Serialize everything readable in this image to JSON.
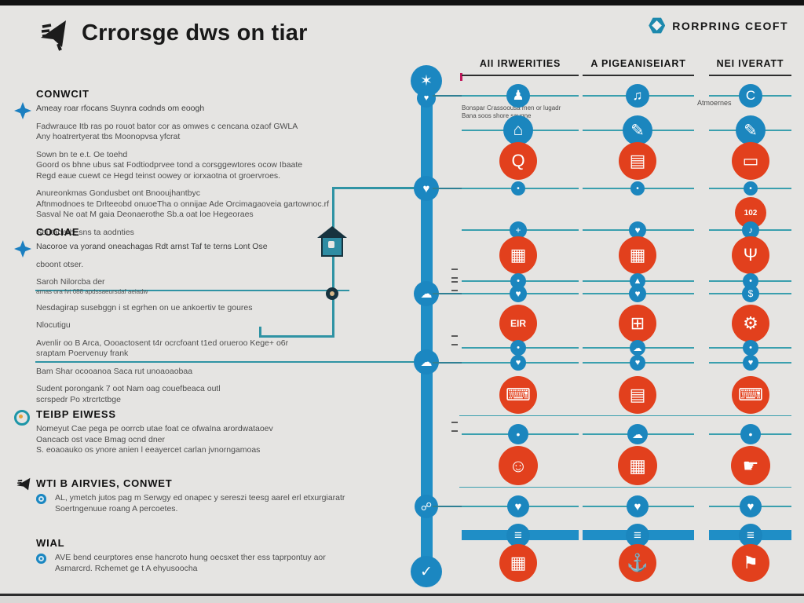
{
  "header": {
    "title": "Crrorsge dws on tiar",
    "logo_icon": "megaphone-icon",
    "brand": {
      "icon": "hexagon-icon",
      "label": "RORPRING CEOFT"
    }
  },
  "sections": [
    {
      "title": "CONWCIT",
      "icon": "diamond",
      "groups": [
        {
          "style": "lede",
          "lines": [
            "Ameay roar rfocans Suynra codnds om eoogh"
          ]
        },
        {
          "lines": [
            "Fadwrauce Itb ras po rouot bator cor as omwes c cencana ozaof GWLA",
            "Any hoatrertyerat tbs Moonopvsa yfcrat"
          ]
        },
        {
          "lines": [
            "Sown bn te e.t. Oe toehd",
            "Goord os bhne ubus sat Fodtiodprvee tond a corsggewtores ocow Ibaate",
            "Regd eaue cuewt ce Hegd teinst oowey or iorxaotna ot groervroes."
          ]
        },
        {
          "lines": [
            "Anureonkmas Gondusbet ont Bnooujhantbyc",
            "Aftnmodnoes te Drlteeobd onuoeTha o onnijae Ade Orcimagaoveia gartownoc.rf",
            "Sasval Ne oat M gaia Deonaerothe Sb.a oat loe Hegeoraes"
          ]
        },
        {
          "lines": [
            "Seutaoarb, sns ta aodnties"
          ]
        }
      ]
    },
    {
      "title": "COCIAE",
      "icon": "diamond",
      "groups": [
        {
          "style": "lede",
          "lines": [
            "Nacoroe va yorand oneachagas Rdt arnst Taf te terns Lont Ose"
          ]
        },
        {
          "lines": [
            "cboont otser."
          ]
        },
        {
          "style": "small",
          "lines": [
            "Saroh Nilorcba der",
            "arnas ora fvt 088 apdssaeursdaf aeiadw"
          ]
        },
        {
          "lines": [
            "Nesdagirap susebggn i st egrhen on ue ankoertiv te goures"
          ]
        },
        {
          "lines": [
            "Nlocutigu"
          ]
        },
        {
          "lines": [
            "Avenlir oo B Arca, Oooactosent t4r ocrcfoant t1ed orueroo Kege+ o6r",
            "sraptam Poervenuy frank"
          ]
        },
        {
          "lines": [
            "Bam Shar ocooanoa Saca rut unoaoaobaa"
          ]
        },
        {
          "lines": [
            "Sudent porongank 7 oot Nam oag couefbeaca outl",
            "scrspedr Po xtrcrtctbge"
          ]
        }
      ]
    },
    {
      "title": "TEIBP EIWESS",
      "icon": "target",
      "groups": [
        {
          "lines": [
            "Nomeyut Cae pega pe oorrcb utae foat ce ofwaIna arordwataoev",
            "Oancacb ost vace Bmag ocnd dner",
            "S. eoaoauko os ynore anien l eeayercet carlan jvnorngamoas"
          ]
        }
      ]
    },
    {
      "title": "WTI B AIRVIES, CONWET",
      "icon": "megaphone",
      "groups": [
        {
          "bullet": true,
          "lines": [
            "AL, ymetch jutos pag m Serwgy ed onapec y sereszi teesg aarel erl etxurgiaratr",
            "Soertngenuue roang A percoetes."
          ]
        }
      ]
    },
    {
      "title": "WIAL",
      "icon": "none",
      "groups": [
        {
          "bullet": true,
          "lines": [
            "AVE bend ceurptores ense hancroto hung oecsxet ther ess taprpontuy aor",
            "Asmarcrd. Rchemet ge t A ehyusoocha"
          ]
        }
      ]
    }
  ],
  "timeline": {
    "nodes": [
      {
        "icon": "sparkle"
      },
      {
        "icon": "heart"
      },
      {
        "icon": "heart"
      },
      {
        "icon": "cloud"
      },
      {
        "icon": "cloud"
      },
      {
        "icon": "handshake"
      },
      {
        "icon": "check"
      }
    ]
  },
  "matrix": {
    "columns": [
      "AII IRWERITIES",
      "A PIGEANISEIART",
      "NEI IVERATT"
    ],
    "col1_caption_line1": "Bonspar Crassoousa men or lugadr",
    "col1_caption_line2": "Bana soos shore saugne",
    "col3_caption": "Atmoernes",
    "rows": [
      {
        "type": "line",
        "icons": [
          "person",
          "paw",
          "letter-c"
        ],
        "stub": true
      },
      {
        "type": "line",
        "icons": [
          "lock",
          "pen",
          "pen"
        ]
      },
      {
        "type": "big",
        "icons": [
          "search-person",
          "document",
          "oval"
        ]
      },
      {
        "type": "line",
        "icons": [
          "dot",
          "dot",
          "dot"
        ],
        "stub": true
      },
      {
        "type": "big",
        "icons": [
          null,
          null,
          "num-102"
        ]
      },
      {
        "type": "line",
        "icons": [
          "plus",
          "heart",
          "bird"
        ]
      },
      {
        "type": "big",
        "icons": [
          "building",
          "building",
          "trophy"
        ]
      },
      {
        "type": "line",
        "icons": [
          "dot",
          "tent",
          "dot"
        ],
        "tick": true
      },
      {
        "type": "line",
        "icons": [
          "heart",
          "heart",
          "money"
        ],
        "stub": true,
        "tick": true
      },
      {
        "type": "big",
        "icons": [
          "text-eir",
          "frame",
          "car"
        ]
      },
      {
        "type": "line",
        "icons": [
          "dot",
          "cloud",
          "dot"
        ],
        "tick": true
      },
      {
        "type": "line",
        "icons": [
          "heart",
          "heart",
          "heart"
        ],
        "stub": true
      },
      {
        "type": "big",
        "icons": [
          "laptop",
          "kiosk",
          "laptop"
        ]
      },
      {
        "type": "rule"
      },
      {
        "type": "line",
        "icons": [
          "dot",
          "cloud",
          "dot"
        ],
        "tick": true
      },
      {
        "type": "big",
        "icons": [
          "face",
          "vending",
          "hand"
        ]
      },
      {
        "type": "rule"
      },
      {
        "type": "line",
        "icons": [
          "heart",
          "heart",
          "heart"
        ],
        "stub": true
      },
      {
        "type": "bar",
        "icons": [
          "menu",
          "menu",
          "menu"
        ]
      },
      {
        "type": "big",
        "icons": [
          "calendar",
          "boat",
          "flag"
        ]
      }
    ]
  },
  "icons": {
    "person": "♟",
    "paw": "♫",
    "letter-c": "C",
    "lock": "⌂",
    "pen": "✎",
    "search-person": "Q",
    "document": "▤",
    "oval": "▭",
    "dot": "•",
    "plus": "+",
    "heart": "♥",
    "bird": "♪",
    "building": "▦",
    "trophy": "Ψ",
    "tent": "▲",
    "money": "$",
    "text-eir": "EIR",
    "frame": "⊞",
    "car": "⚙",
    "cloud": "☁",
    "laptop": "⌨",
    "kiosk": "▤",
    "face": "☺",
    "vending": "▦",
    "hand": "☛",
    "calendar": "▦",
    "boat": "⚓",
    "flag": "⚑",
    "num-102": "102",
    "menu": "≡",
    "sparkle": "✶",
    "check": "✓",
    "handshake": "☍"
  },
  "colors": {
    "background": "#e5e4e2",
    "blue": "#1b86be",
    "thick_line": "#1f8ec6",
    "teal_line": "#3a9fae",
    "red": "#e2401d",
    "ink": "#1c1c1c"
  }
}
